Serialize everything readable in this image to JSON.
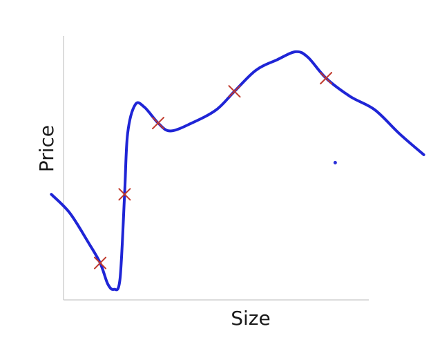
{
  "chart_data": {
    "type": "scatter",
    "title": "",
    "xlabel": "Size",
    "ylabel": "Price",
    "grid": false,
    "legend": "none",
    "colors": {
      "axis": "#d0d0d0",
      "curve": "#1f25d6",
      "marker": "#c0392b",
      "dot": "#2a30d8"
    },
    "series": [
      {
        "marker": "x",
        "points": [
          {
            "x": 0.12,
            "y": 0.14
          },
          {
            "x": 0.2,
            "y": 0.4
          },
          {
            "x": 0.31,
            "y": 0.67
          },
          {
            "x": 0.56,
            "y": 0.79
          },
          {
            "x": 0.86,
            "y": 0.84
          }
        ]
      }
    ],
    "fitted_curve": [
      {
        "x": -0.04,
        "y": 0.4
      },
      {
        "x": 0.02,
        "y": 0.33
      },
      {
        "x": 0.08,
        "y": 0.22
      },
      {
        "x": 0.12,
        "y": 0.14
      },
      {
        "x": 0.145,
        "y": 0.06
      },
      {
        "x": 0.165,
        "y": 0.04
      },
      {
        "x": 0.185,
        "y": 0.08
      },
      {
        "x": 0.2,
        "y": 0.4
      },
      {
        "x": 0.21,
        "y": 0.63
      },
      {
        "x": 0.235,
        "y": 0.74
      },
      {
        "x": 0.265,
        "y": 0.73
      },
      {
        "x": 0.31,
        "y": 0.67
      },
      {
        "x": 0.35,
        "y": 0.64
      },
      {
        "x": 0.42,
        "y": 0.67
      },
      {
        "x": 0.5,
        "y": 0.72
      },
      {
        "x": 0.56,
        "y": 0.79
      },
      {
        "x": 0.63,
        "y": 0.87
      },
      {
        "x": 0.7,
        "y": 0.91
      },
      {
        "x": 0.76,
        "y": 0.94
      },
      {
        "x": 0.8,
        "y": 0.92
      },
      {
        "x": 0.86,
        "y": 0.84
      },
      {
        "x": 0.94,
        "y": 0.77
      },
      {
        "x": 1.02,
        "y": 0.72
      },
      {
        "x": 1.1,
        "y": 0.63
      },
      {
        "x": 1.18,
        "y": 0.55
      }
    ],
    "stray_dot": {
      "x": 0.89,
      "y": 0.52
    },
    "xlim": [
      0,
      1
    ],
    "ylim": [
      0,
      1
    ]
  }
}
